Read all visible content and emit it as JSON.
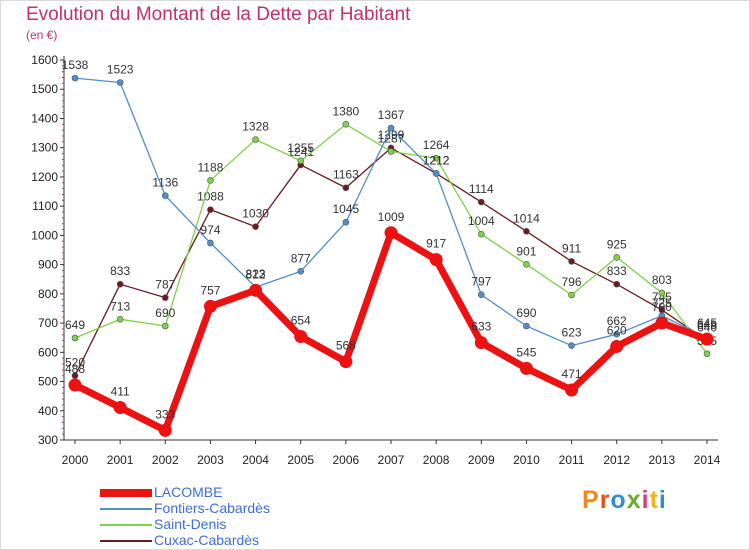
{
  "title": "Evolution du Montant de la Dette par Habitant",
  "unit_label": "(en €)",
  "logo": {
    "text": "Proxiti",
    "letter_colors": [
      "#f08a1c",
      "#e45220",
      "#2f8fd6",
      "#6aaa2e",
      "#d83a8a",
      "#f0b21c",
      "#2f8fd6"
    ]
  },
  "chart_data": {
    "type": "line",
    "x": [
      "2000",
      "2001",
      "2002",
      "2003",
      "2004",
      "2005",
      "2006",
      "2007",
      "2008",
      "2009",
      "2010",
      "2011",
      "2012",
      "2013",
      "2014"
    ],
    "ylim": [
      300,
      1600
    ],
    "yticks": [
      300,
      400,
      500,
      600,
      700,
      800,
      900,
      1000,
      1100,
      1200,
      1300,
      1400,
      1500,
      1600
    ],
    "grid": false,
    "legend_position": "bottom-left",
    "series": [
      {
        "name": "LACOMBE",
        "color": "#ee1111",
        "values": [
          488,
          411,
          333,
          757,
          812,
          654,
          568,
          1009,
          917,
          633,
          545,
          471,
          620,
          700,
          645
        ]
      },
      {
        "name": "Fontiers-Cabardès",
        "color": "#4f8fcd",
        "values": [
          1538,
          1523,
          1136,
          974,
          823,
          877,
          1045,
          1367,
          1212,
          797,
          690,
          623,
          662,
          725,
          649
        ]
      },
      {
        "name": "Saint-Denis",
        "color": "#7cd24a",
        "values": [
          649,
          713,
          690,
          1188,
          1328,
          1255,
          1380,
          1287,
          1264,
          1004,
          901,
          796,
          925,
          803,
          595
        ]
      },
      {
        "name": "Cuxac-Cabardès",
        "color": "#6b1a1f",
        "values": [
          520,
          833,
          787,
          1088,
          1030,
          1241,
          1163,
          1299,
          1212,
          1114,
          1014,
          911,
          833,
          745,
          640
        ]
      }
    ]
  }
}
